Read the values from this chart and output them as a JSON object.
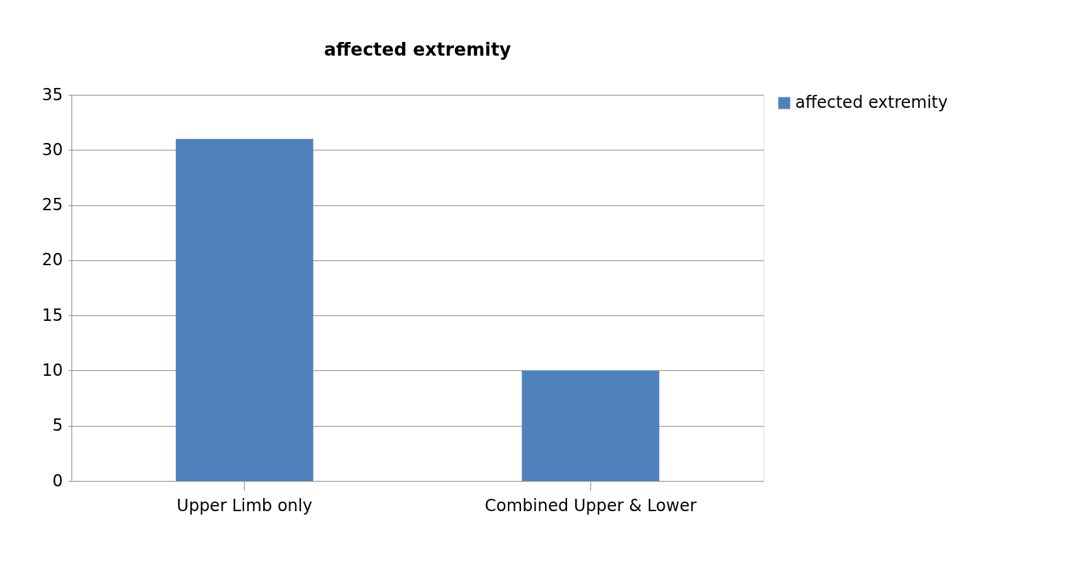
{
  "chart_data": {
    "type": "bar",
    "title": "affected extremity",
    "categories": [
      "Upper Limb only",
      "Combined Upper & Lower"
    ],
    "series": [
      {
        "name": "affected extremity",
        "color": "#4f81bd",
        "values": [
          31,
          10
        ]
      }
    ],
    "ylim": [
      0,
      35
    ],
    "yticks": [
      0,
      5,
      10,
      15,
      20,
      25,
      30,
      35
    ],
    "grid": "y",
    "legend": "right"
  }
}
